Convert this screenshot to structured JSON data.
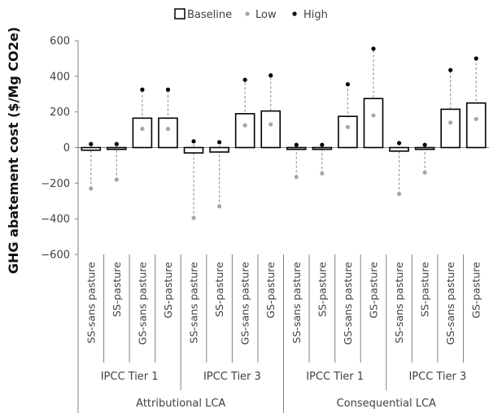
{
  "chart_data": {
    "type": "bar",
    "ylabel": "GHG abatement cost ($/Mg CO2e)",
    "ylim": [
      -600,
      600
    ],
    "yticks": [
      "600",
      "400",
      "200",
      "0",
      "−200",
      "−400",
      "−600"
    ],
    "legend": {
      "placement": "top-center",
      "items": [
        {
          "label": "Baseline",
          "marker": "box"
        },
        {
          "label": "Low",
          "marker": "gray-dot"
        },
        {
          "label": "High",
          "marker": "black-dot"
        }
      ]
    },
    "categories": [
      "SS-sans pasture",
      "SS-pasture",
      "GS-sans pasture",
      "GS-pasture",
      "SS-sans pasture",
      "SS-pasture",
      "GS-sans pasture",
      "GS-pasture",
      "SS-sans pasture",
      "SS-pasture",
      "GS-sans pasture",
      "GS-pasture",
      "SS-sans pasture",
      "SS-pasture",
      "GS-sans pasture",
      "GS-pasture"
    ],
    "groups_level1": [
      "IPCC Tier 1",
      "IPCC Tier 3",
      "IPCC Tier 1",
      "IPCC Tier 3"
    ],
    "groups_level2": [
      "Attributional LCA",
      "Consequential LCA"
    ],
    "series": [
      {
        "name": "Baseline",
        "values": [
          -15,
          -10,
          165,
          165,
          -30,
          -25,
          190,
          205,
          -10,
          -10,
          175,
          275,
          -20,
          -10,
          215,
          250
        ]
      },
      {
        "name": "Low",
        "values": [
          -230,
          -180,
          105,
          105,
          -395,
          -330,
          125,
          130,
          -165,
          -145,
          115,
          180,
          -260,
          -140,
          140,
          160
        ]
      },
      {
        "name": "High",
        "values": [
          20,
          20,
          325,
          325,
          35,
          30,
          380,
          405,
          15,
          15,
          355,
          555,
          25,
          15,
          435,
          500
        ]
      }
    ],
    "colors": {
      "bar_fill": "#ffffff",
      "bar_stroke": "#000000",
      "low": "#a6a6a6",
      "high": "#000000",
      "axis": "#808080"
    }
  }
}
